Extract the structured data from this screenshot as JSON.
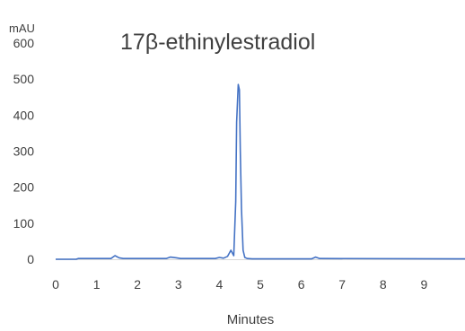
{
  "chart_data": {
    "type": "line",
    "title": "17β-ethinylestradiol",
    "xlabel": "Minutes",
    "ylabel": "mAU",
    "xlim": [
      0,
      10
    ],
    "ylim": [
      0,
      600
    ],
    "xticks": [
      0,
      1,
      2,
      3,
      4,
      5,
      6,
      7,
      8,
      9
    ],
    "yticks": [
      0,
      100,
      200,
      300,
      400,
      500,
      600
    ],
    "grid": false,
    "line_color": "#4472c4",
    "series": [
      {
        "x": [
          0,
          0.5,
          0.55,
          1.35,
          1.45,
          1.55,
          1.65,
          2.7,
          2.8,
          2.95,
          3.05,
          3.9,
          4.0,
          4.1,
          4.2,
          4.28,
          4.35,
          4.4,
          4.42,
          4.46,
          4.49,
          4.51,
          4.54,
          4.58,
          4.62,
          4.68,
          4.8,
          6.25,
          6.35,
          6.45,
          10
        ],
        "values": [
          0,
          0,
          2,
          2,
          10,
          4,
          2,
          2,
          6,
          4,
          2,
          2,
          5,
          3,
          8,
          25,
          10,
          160,
          380,
          485,
          470,
          300,
          140,
          25,
          5,
          2,
          1,
          1,
          6,
          2,
          1
        ]
      }
    ]
  }
}
